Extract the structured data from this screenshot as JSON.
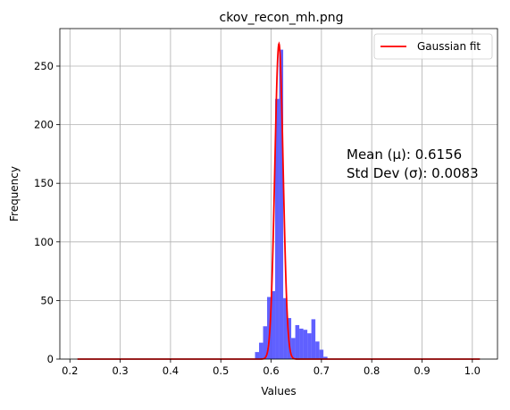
{
  "chart_data": {
    "type": "histogram",
    "title": "ckov_recon_mh.png",
    "xlabel": "Values",
    "ylabel": "Frequency",
    "xlim": [
      0.18,
      1.05
    ],
    "ylim": [
      0,
      282
    ],
    "x_ticks": [
      "0.2",
      "0.3",
      "0.4",
      "0.5",
      "0.6",
      "0.7",
      "0.8",
      "0.9",
      "1.0"
    ],
    "y_ticks": [
      "0",
      "50",
      "100",
      "150",
      "200",
      "250"
    ],
    "grid": true,
    "legend_position": "top-right",
    "bar_color": "#4444ff",
    "fit_color": "#ff0000",
    "histogram": {
      "bin_width": 0.008,
      "bins": [
        {
          "x": 0.568,
          "count": 6
        },
        {
          "x": 0.576,
          "count": 14
        },
        {
          "x": 0.584,
          "count": 28
        },
        {
          "x": 0.592,
          "count": 53
        },
        {
          "x": 0.6,
          "count": 58
        },
        {
          "x": 0.608,
          "count": 222
        },
        {
          "x": 0.616,
          "count": 264
        },
        {
          "x": 0.624,
          "count": 52
        },
        {
          "x": 0.632,
          "count": 35
        },
        {
          "x": 0.64,
          "count": 18
        },
        {
          "x": 0.648,
          "count": 29
        },
        {
          "x": 0.656,
          "count": 26
        },
        {
          "x": 0.664,
          "count": 25
        },
        {
          "x": 0.672,
          "count": 22
        },
        {
          "x": 0.68,
          "count": 34
        },
        {
          "x": 0.688,
          "count": 15
        },
        {
          "x": 0.696,
          "count": 8
        },
        {
          "x": 0.704,
          "count": 2
        }
      ]
    },
    "fit": {
      "name": "Gaussian fit",
      "mean": 0.6156,
      "sigma": 0.0083,
      "peak": 269,
      "x_range": [
        0.215,
        1.015
      ]
    },
    "legend": [
      "Gaussian fit"
    ],
    "annotation": {
      "mean_text": "Mean (μ): 0.6156",
      "std_text": "Std Dev (σ): 0.0083"
    }
  }
}
